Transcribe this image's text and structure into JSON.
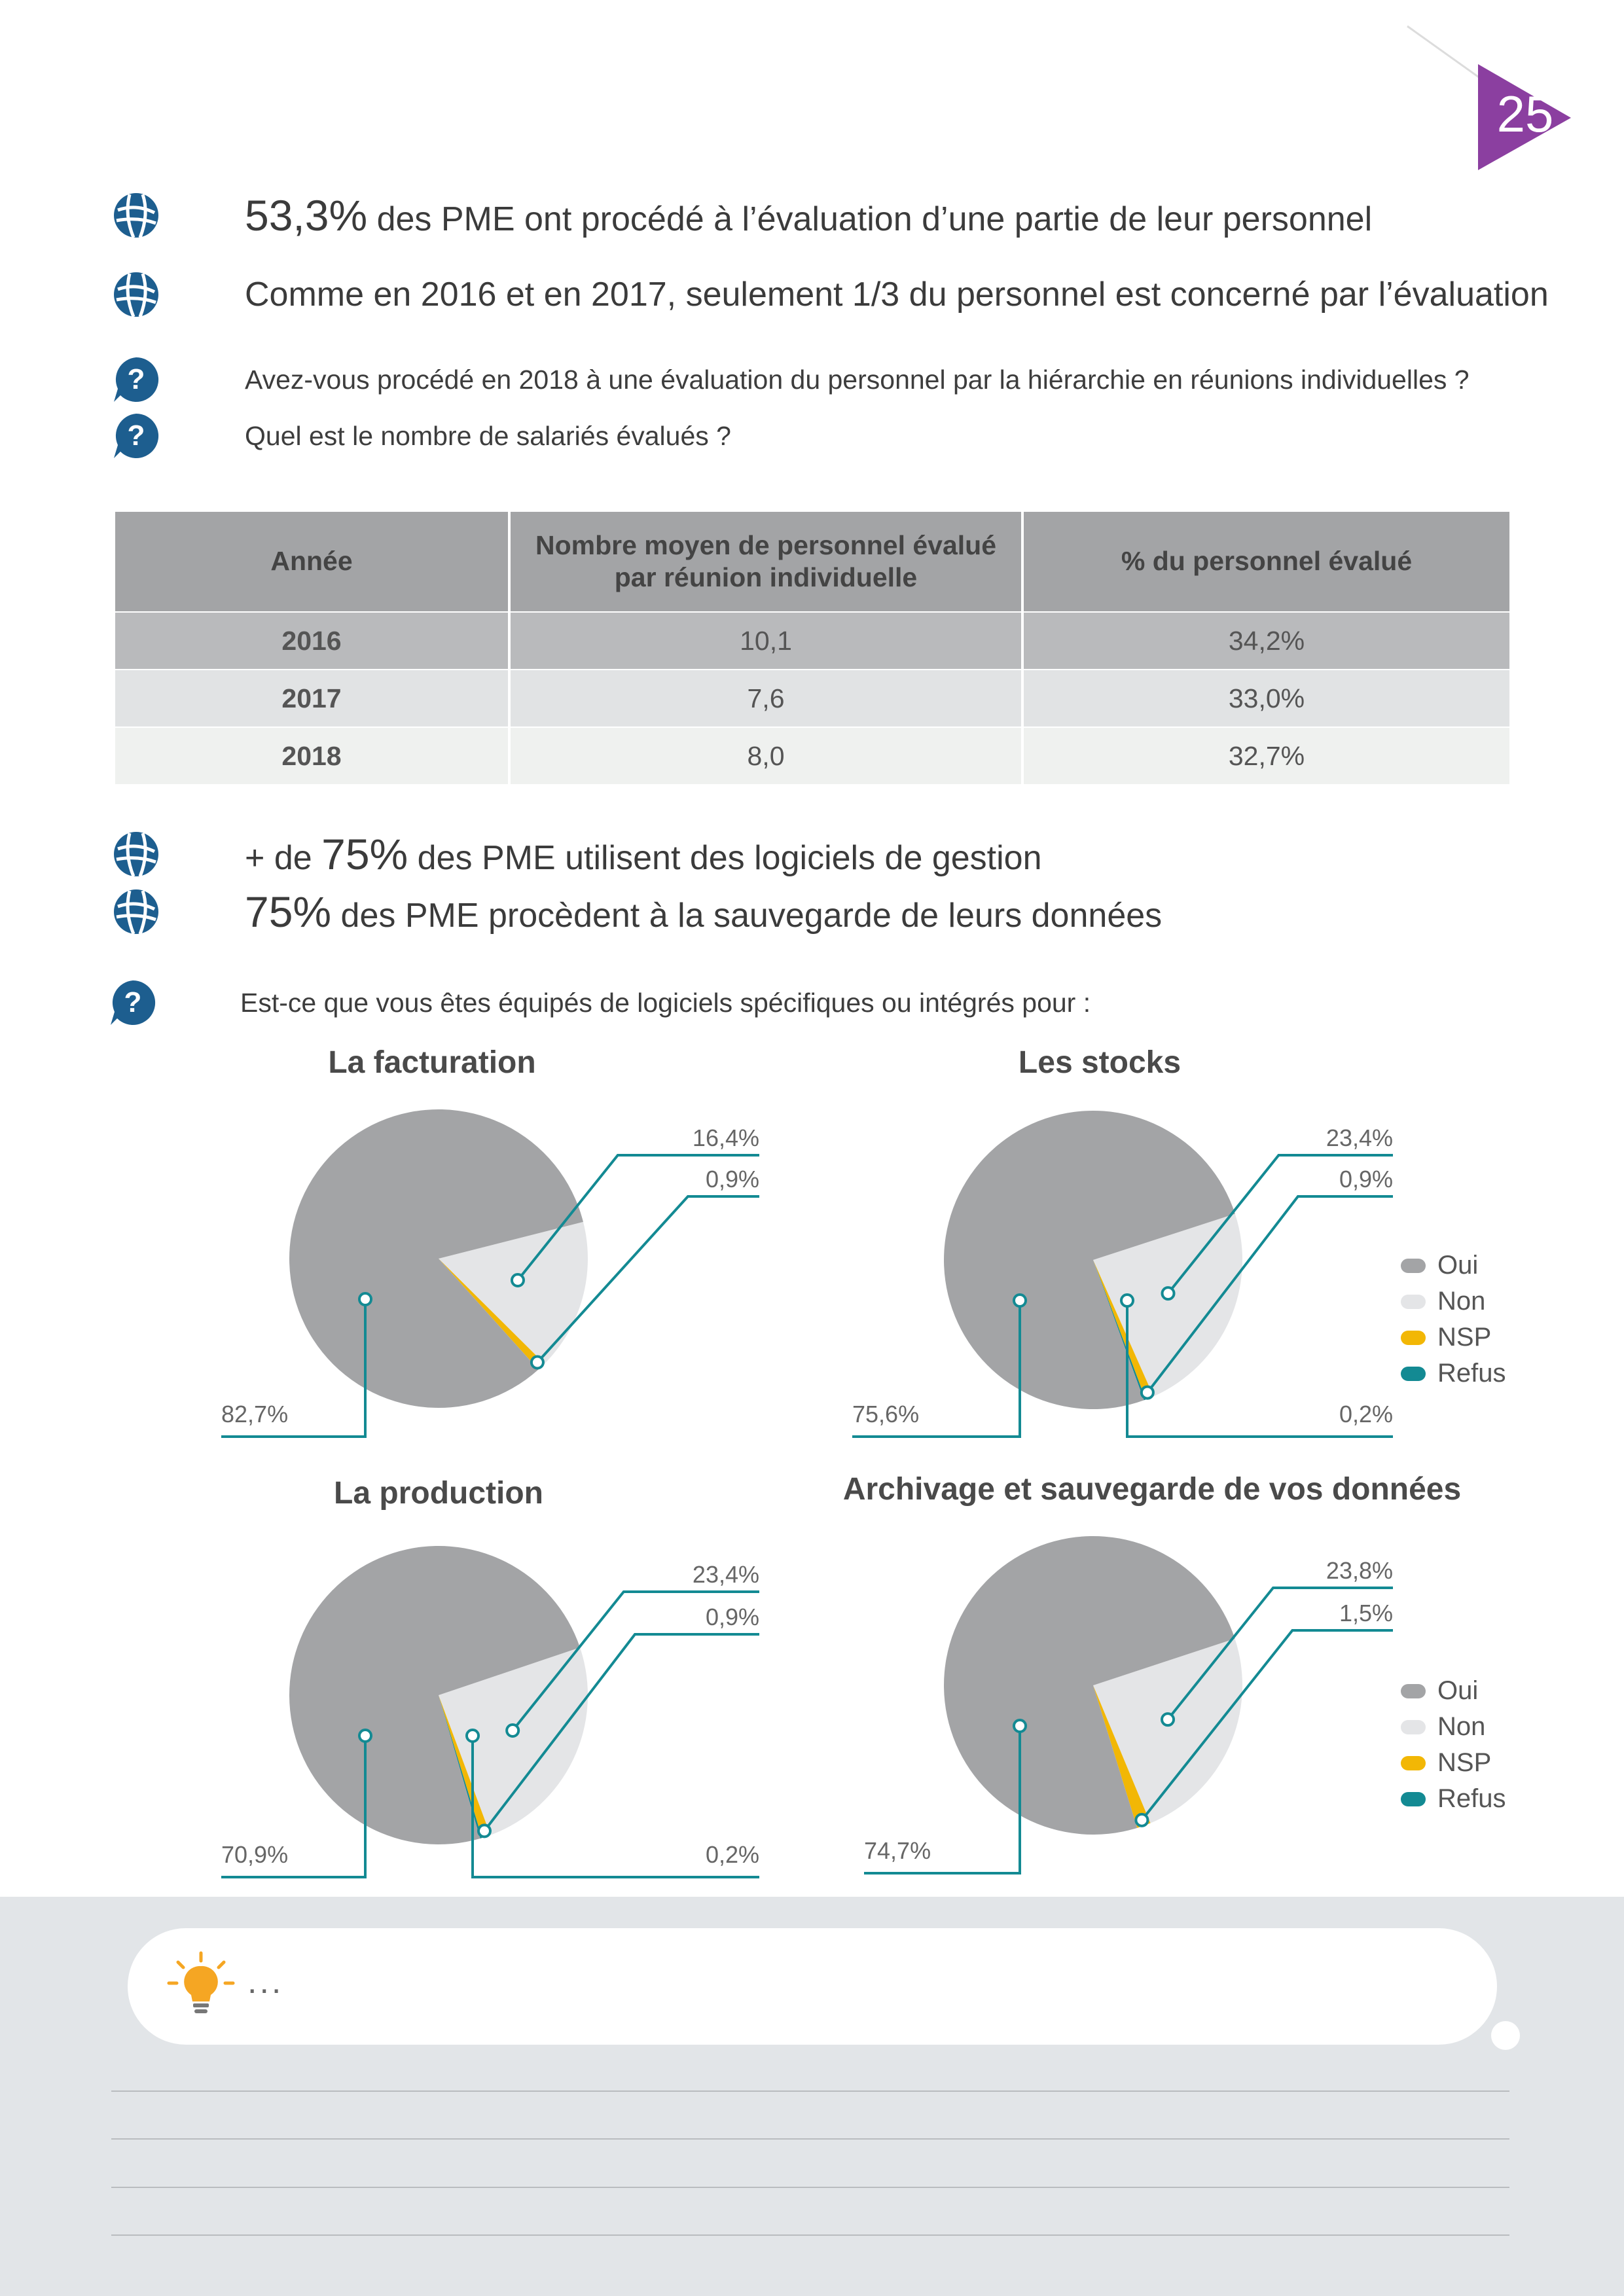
{
  "page_number": "25",
  "colors": {
    "accent_purple": "#8b3fa0",
    "icon_blue": "#1d5e8f",
    "oui": "#a3a4a6",
    "non": "#e4e5e7",
    "nsp": "#f2b705",
    "refus": "#138a93",
    "leader": "#138a93"
  },
  "bullets": [
    {
      "big": "53,3%",
      "text": " des PME ont procédé à l’évaluation d’une partie  de leur  personnel"
    },
    {
      "big": "",
      "text": "Comme en 2016 et en 2017, seulement 1/3 du personnel est concerné par l’évaluation"
    }
  ],
  "questions": [
    "Avez-vous procédé en 2018 à une évaluation du personnel par la hiérarchie en réunions individuelles ?",
    "Quel est le nombre de salariés évalués ?"
  ],
  "table": {
    "headers": [
      "Année",
      "Nombre moyen de personnel évalué par réunion individuelle",
      "% du personnel évalué"
    ],
    "rows": [
      [
        "2016",
        "10,1",
        "34,2%"
      ],
      [
        "2017",
        "7,6",
        "33,0%"
      ],
      [
        "2018",
        "8,0",
        "32,7%"
      ]
    ]
  },
  "bullets2": [
    {
      "prefix": " + de ",
      "big": "75%",
      "text": " des PME utilisent des logiciels de gestion"
    },
    {
      "prefix": "",
      "big": "75%",
      "text": " des PME procèdent à la sauvegarde de leurs données"
    }
  ],
  "question3": "Est-ce que vous êtes équipés de logiciels spécifiques ou intégrés pour :",
  "legend": [
    "Oui",
    "Non",
    "NSP",
    "Refus"
  ],
  "chart_data": [
    {
      "type": "pie",
      "title": "La facturation",
      "categories": [
        "Oui",
        "Non",
        "NSP",
        "Refus"
      ],
      "values": [
        82.7,
        16.4,
        0.9,
        0.0
      ],
      "labels": {
        "oui": "82,7%",
        "non": "16,4%",
        "nsp": "0,9%"
      }
    },
    {
      "type": "pie",
      "title": "Les stocks",
      "categories": [
        "Oui",
        "Non",
        "NSP",
        "Refus"
      ],
      "values": [
        75.6,
        23.4,
        0.9,
        0.2
      ],
      "labels": {
        "oui": "75,6%",
        "non": "23,4%",
        "nsp": "0,9%",
        "refus": "0,2%"
      }
    },
    {
      "type": "pie",
      "title": "La production",
      "categories": [
        "Oui",
        "Non",
        "NSP",
        "Refus"
      ],
      "values": [
        70.9,
        23.4,
        0.9,
        0.2
      ],
      "labels": {
        "oui": "70,9%",
        "non": "23,4%",
        "nsp": "0,9%",
        "refus": "0,2%"
      }
    },
    {
      "type": "pie",
      "title": "Archivage et sauvegarde de vos données",
      "categories": [
        "Oui",
        "Non",
        "NSP",
        "Refus"
      ],
      "values": [
        74.7,
        23.8,
        1.5,
        0.0
      ],
      "labels": {
        "oui": "74,7%",
        "non": "23,8%",
        "nsp": "1,5%"
      }
    }
  ],
  "note": {
    "icon": "lightbulb-icon",
    "text": "..."
  }
}
